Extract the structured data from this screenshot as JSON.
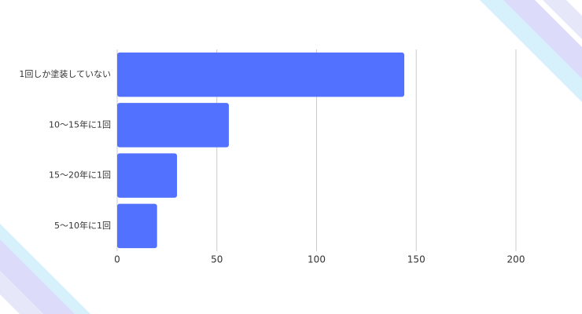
{
  "chart_data": {
    "type": "bar",
    "orientation": "horizontal",
    "categories": [
      "1回しか塗装していない",
      "10〜15年に1回",
      "15〜20年に1回",
      "5〜10年に1回"
    ],
    "values": [
      144,
      56,
      30,
      20
    ],
    "color": "#5271ff",
    "xlim": [
      0,
      200
    ],
    "xticks": [
      0,
      50,
      100,
      150,
      200
    ],
    "grid": true
  }
}
